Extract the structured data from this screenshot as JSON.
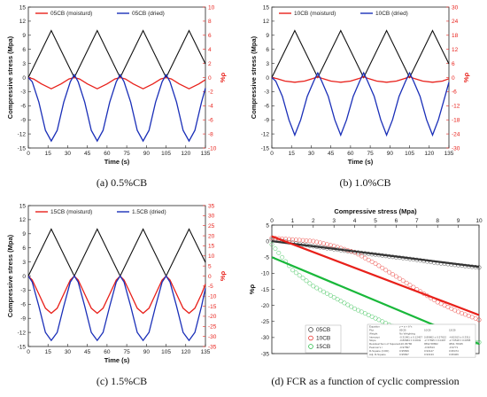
{
  "chart_data": [
    {
      "type": "line",
      "caption": "(a) 0.5%CB",
      "xlabel": "Time (s)",
      "ylabel": "Compressive stress (Mpa)",
      "ylabel_right": "%ρ",
      "xlim": [
        0,
        135
      ],
      "ylim": [
        -15,
        15
      ],
      "ylim_right": [
        -10,
        10
      ],
      "xticks": [
        0,
        15,
        30,
        45,
        60,
        75,
        90,
        105,
        120,
        135
      ],
      "yticks": [
        -15,
        -12,
        -9,
        -6,
        -3,
        0,
        3,
        6,
        9,
        12,
        15
      ],
      "yticks_right": [
        -10,
        -8,
        -6,
        -4,
        -2,
        0,
        2,
        4,
        6,
        8,
        10
      ],
      "stress": {
        "x": [
          0,
          17.5,
          35,
          52.5,
          70,
          87.5,
          105,
          122.5,
          135
        ],
        "y": [
          0,
          10,
          0,
          10,
          0,
          10,
          0,
          10,
          2.9
        ]
      },
      "series": [
        {
          "name": "05CB (moisturd)",
          "color": "#e8201a",
          "x": [
            0,
            4,
            10,
            17.5,
            25,
            31,
            35,
            39,
            45,
            52.5,
            60,
            66,
            70,
            74,
            80,
            87.5,
            95,
            101,
            105,
            109,
            115,
            122.5,
            130,
            135
          ],
          "y": [
            0,
            -0.2,
            -0.9,
            -1.6,
            -0.9,
            -0.2,
            0,
            -0.2,
            -0.9,
            -1.6,
            -0.9,
            -0.2,
            0,
            -0.2,
            -0.9,
            -1.6,
            -0.9,
            -0.2,
            0,
            -0.2,
            -0.9,
            -1.6,
            -0.9,
            -0.3
          ]
        },
        {
          "name": "05CB (dried)",
          "color": "#1a2fb8",
          "x": [
            0,
            3,
            8,
            13,
            17.5,
            22,
            27,
            32,
            35,
            38,
            43,
            48,
            52.5,
            57,
            62,
            67,
            70,
            73,
            78,
            83,
            87.5,
            92,
            97,
            102,
            105,
            108,
            113,
            118,
            122.5,
            127,
            132,
            135
          ],
          "y": [
            0,
            -0.6,
            -3.5,
            -7.5,
            -9.0,
            -7.5,
            -3.5,
            -0.6,
            0.4,
            -0.6,
            -3.5,
            -7.5,
            -9.0,
            -7.5,
            -3.5,
            -0.6,
            0.4,
            -0.6,
            -3.5,
            -7.5,
            -9.0,
            -7.5,
            -3.5,
            -0.6,
            0.4,
            -0.6,
            -3.5,
            -7.5,
            -9.0,
            -7.5,
            -3.5,
            -1.5
          ]
        }
      ]
    },
    {
      "type": "line",
      "caption": "(b) 1.0%CB",
      "xlabel": "Time (s)",
      "ylabel": "Compressive stress (Mpa)",
      "ylabel_right": "%ρ",
      "xlim": [
        0,
        135
      ],
      "ylim": [
        -15,
        15
      ],
      "ylim_right": [
        -30,
        30
      ],
      "xticks": [
        0,
        15,
        30,
        45,
        60,
        75,
        90,
        105,
        120,
        135
      ],
      "yticks": [
        -15,
        -12,
        -9,
        -6,
        -3,
        0,
        3,
        6,
        9,
        12,
        15
      ],
      "yticks_right": [
        -30,
        -24,
        -18,
        -12,
        -6,
        0,
        6,
        12,
        18,
        24,
        30
      ],
      "stress": {
        "x": [
          0,
          17.5,
          35,
          52.5,
          70,
          87.5,
          105,
          122.5,
          135
        ],
        "y": [
          0,
          10,
          0,
          10,
          0,
          10,
          0,
          10,
          2.9
        ]
      },
      "series": [
        {
          "name": "10CB (moisturd)",
          "color": "#e8201a",
          "x": [
            0,
            4,
            10,
            17.5,
            25,
            31,
            35,
            39,
            45,
            52.5,
            60,
            66,
            70,
            74,
            80,
            87.5,
            95,
            101,
            105,
            109,
            115,
            122.5,
            130,
            135
          ],
          "y": [
            0,
            -0.5,
            -1.5,
            -2.0,
            -1.5,
            -0.5,
            0.3,
            -0.5,
            -1.5,
            -2.0,
            -1.5,
            -0.5,
            0.3,
            -0.5,
            -1.5,
            -2.0,
            -1.5,
            -0.5,
            0.3,
            -0.5,
            -1.5,
            -2.0,
            -1.5,
            -0.5
          ]
        },
        {
          "name": "10CB (dried)",
          "color": "#1a2fb8",
          "x": [
            0,
            3,
            8,
            13,
            17.5,
            22,
            27,
            32,
            35,
            38,
            43,
            48,
            52.5,
            57,
            62,
            67,
            70,
            73,
            78,
            83,
            87.5,
            92,
            97,
            102,
            105,
            108,
            113,
            118,
            122.5,
            127,
            132,
            135
          ],
          "y": [
            0,
            -1.5,
            -8,
            -18,
            -24.5,
            -18,
            -8,
            -1.5,
            2,
            -1.5,
            -8,
            -18,
            -24.5,
            -18,
            -8,
            -1.5,
            2,
            -1.5,
            -8,
            -18,
            -24.5,
            -18,
            -8,
            -1.5,
            2,
            -1.5,
            -8,
            -18,
            -24.5,
            -18,
            -8,
            -2
          ]
        }
      ]
    },
    {
      "type": "line",
      "caption": "(c) 1.5%CB",
      "xlabel": "Time (s)",
      "ylabel": "Compressive stress (Mpa)",
      "ylabel_right": "%ρ",
      "xlim": [
        0,
        135
      ],
      "ylim": [
        -15,
        15
      ],
      "ylim_right": [
        -35,
        35
      ],
      "xticks": [
        0,
        15,
        30,
        45,
        60,
        75,
        90,
        105,
        120,
        135
      ],
      "yticks": [
        -15,
        -12,
        -9,
        -6,
        -3,
        0,
        3,
        6,
        9,
        12,
        15
      ],
      "yticks_right": [
        -35,
        -30,
        -25,
        -20,
        -15,
        -10,
        -5,
        0,
        5,
        10,
        15,
        20,
        25,
        30,
        35
      ],
      "stress": {
        "x": [
          0,
          17.5,
          35,
          52.5,
          70,
          87.5,
          105,
          122.5,
          135
        ],
        "y": [
          0,
          10,
          0,
          10,
          0,
          10,
          0,
          10,
          2.9
        ]
      },
      "series": [
        {
          "name": "15CB (moisturd)",
          "color": "#e8201a",
          "x": [
            0,
            3,
            8,
            13,
            17.5,
            22,
            27,
            32,
            35,
            38,
            43,
            48,
            52.5,
            57,
            62,
            67,
            70,
            73,
            78,
            83,
            87.5,
            92,
            97,
            102,
            105,
            108,
            113,
            118,
            122.5,
            127,
            132,
            135
          ],
          "y": [
            0,
            -2,
            -9,
            -16,
            -18.5,
            -16,
            -9,
            -2,
            0,
            -2,
            -9,
            -16,
            -18.5,
            -16,
            -9,
            -2,
            0,
            -2,
            -9,
            -16,
            -18.5,
            -16,
            -9,
            -2,
            0,
            -2,
            -9,
            -16,
            -18.5,
            -16,
            -9,
            -4
          ]
        },
        {
          "name": "1.5CB (dried)",
          "color": "#1a2fb8",
          "x": [
            0,
            3,
            8,
            13,
            17.5,
            22,
            27,
            32,
            35,
            38,
            43,
            48,
            52.5,
            57,
            62,
            67,
            70,
            73,
            78,
            83,
            87.5,
            92,
            97,
            102,
            105,
            108,
            113,
            118,
            122.5,
            127,
            132,
            135
          ],
          "y": [
            0,
            -3,
            -15,
            -28,
            -32,
            -28,
            -15,
            -3,
            0,
            -3,
            -15,
            -28,
            -32,
            -28,
            -15,
            -3,
            0,
            -3,
            -15,
            -28,
            -32,
            -28,
            -15,
            -3,
            0,
            -3,
            -15,
            -28,
            -32,
            -28,
            -15,
            -6
          ]
        }
      ]
    },
    {
      "type": "scatter",
      "caption": "(d) FCR as a function of cyclic compression",
      "xlabel": "Compressive stress (Mpa)",
      "ylabel": "%ρ",
      "xlim": [
        0,
        10
      ],
      "ylim": [
        -35,
        5
      ],
      "xticks": [
        0,
        1,
        2,
        3,
        4,
        5,
        6,
        7,
        8,
        9,
        10
      ],
      "yticks": [
        5,
        0,
        -5,
        -10,
        -15,
        -20,
        -25,
        -30,
        -35
      ],
      "series": [
        {
          "name": "05CB",
          "color": "#333333",
          "fit": [
            0.0,
            -8.0
          ],
          "x": [
            0,
            1,
            2,
            3,
            4,
            5,
            6,
            7,
            8,
            9,
            10
          ],
          "y": [
            0.5,
            -0.5,
            -1.6,
            -2.5,
            -3.4,
            -4.2,
            -5.0,
            -5.8,
            -6.8,
            -7.5,
            -8.2
          ]
        },
        {
          "name": "10CB",
          "color": "#e8201a",
          "fit": [
            1.5,
            -23.0
          ],
          "x": [
            0,
            1,
            2,
            3,
            4,
            5,
            6,
            7,
            8,
            9,
            10
          ],
          "y": [
            1.0,
            0.5,
            0.0,
            -1.5,
            -3.5,
            -7.0,
            -11.0,
            -15.0,
            -19.0,
            -22.0,
            -24.5
          ]
        },
        {
          "name": "15CB",
          "color": "#19b83a",
          "fit": [
            -5.0,
            -32.0
          ],
          "x": [
            0,
            1,
            2,
            3,
            4,
            5,
            6,
            7,
            8,
            9,
            10
          ],
          "y": [
            -1.0,
            -9.0,
            -14.0,
            -17.5,
            -21.0,
            -24.0,
            -27.0,
            -29.0,
            -30.5,
            -31.5,
            -31.5
          ]
        }
      ],
      "fit_table": {
        "rows": [
          [
            "Equation",
            "y = a + b*x",
            "",
            ""
          ],
          [
            "Plot",
            "05CB",
            "10CB",
            "15CB"
          ],
          [
            "Weight",
            "No Weighting",
            "",
            ""
          ],
          [
            "Intercept",
            "-0.31961 ± 0.12457",
            "0.89862 ± 0.57622",
            "-4.82013 ± 0.3311"
          ],
          [
            "Slope",
            "-0.80684 ± 0.0032",
            "-2.77695 ± 0.0497",
            "-2.73518 ± 0.0058"
          ],
          [
            "Residual Sum of Squares",
            "120.45786",
            "9592.58862",
            "3831.78435"
          ],
          [
            "Pearson's r",
            "-0.97897",
            "-0.96513",
            "-0.9771"
          ],
          [
            "R-Square (COD)",
            "0.95839",
            "0.93147",
            "0.95474"
          ],
          [
            "Adj. R-Square",
            "0.95837",
            "0.93133",
            "0.95469"
          ]
        ]
      }
    }
  ]
}
